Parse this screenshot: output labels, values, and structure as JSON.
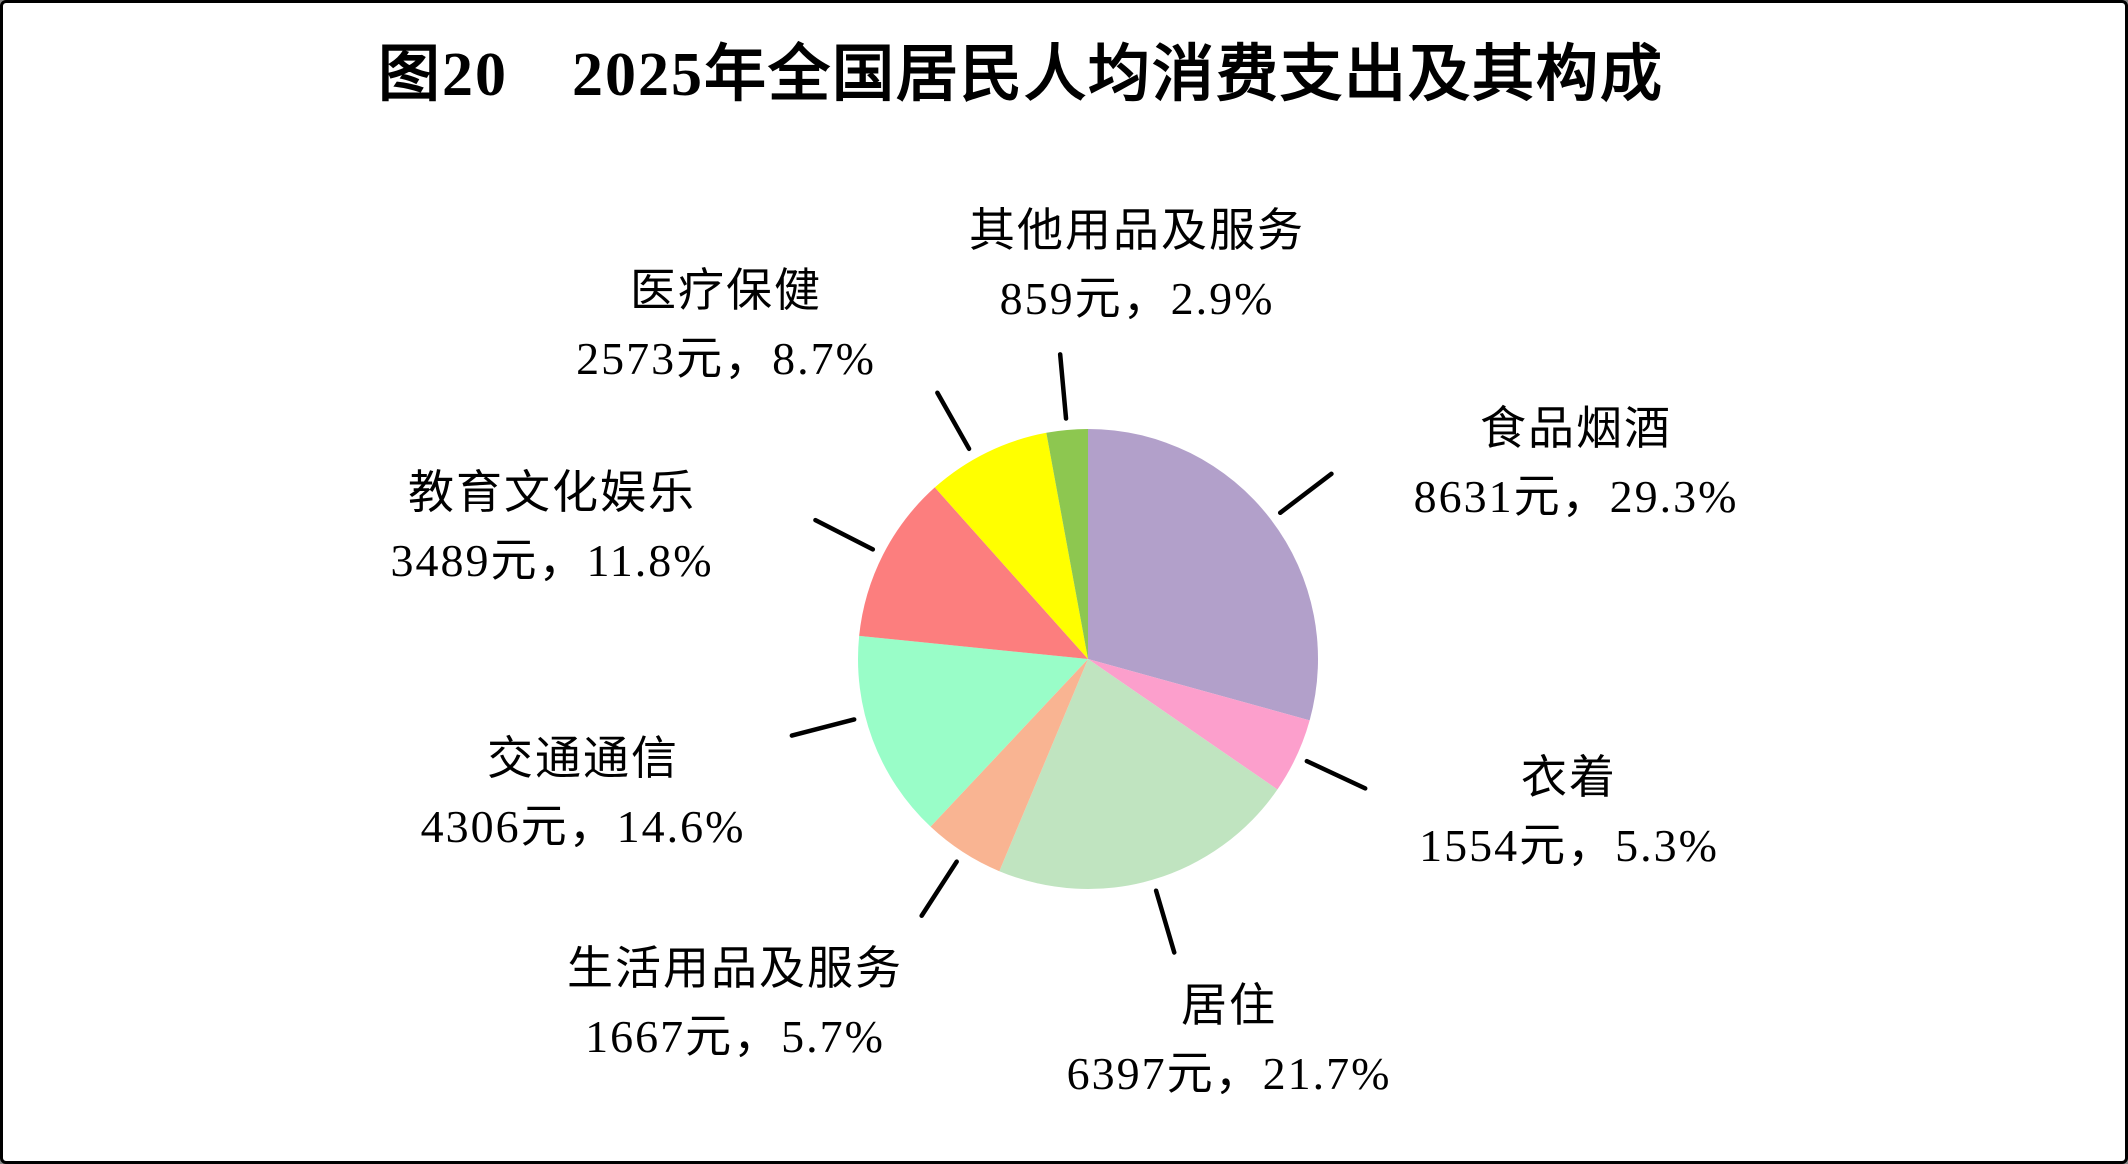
{
  "title": "图20　2025年全国居民人均消费支出及其构成",
  "chart_data": {
    "type": "pie",
    "title": "图20　2025年全国居民人均消费支出及其构成",
    "unit": "元",
    "start_angle_deg": 0,
    "direction": "clockwise",
    "legend_position": "none",
    "leader_line_color": "#000000",
    "slices": [
      {
        "name": "食品烟酒",
        "value_yuan": 8631,
        "pct": 29.3,
        "color": "#b2a0ca",
        "label": "8631元，29.3%"
      },
      {
        "name": "衣着",
        "value_yuan": 1554,
        "pct": 5.3,
        "color": "#fc9fcc",
        "label": "1554元，5.3%"
      },
      {
        "name": "居住",
        "value_yuan": 6397,
        "pct": 21.7,
        "color": "#c0e4c0",
        "label": "6397元，21.7%"
      },
      {
        "name": "生活用品及服务",
        "value_yuan": 1667,
        "pct": 5.7,
        "color": "#f9b492",
        "label": "1667元，5.7%"
      },
      {
        "name": "交通通信",
        "value_yuan": 4306,
        "pct": 14.6,
        "color": "#99fdc8",
        "label": "4306元，14.6%"
      },
      {
        "name": "教育文化娱乐",
        "value_yuan": 3489,
        "pct": 11.8,
        "color": "#fc7e7e",
        "label": "3489元，11.8%"
      },
      {
        "name": "医疗保健",
        "value_yuan": 2573,
        "pct": 8.7,
        "color": "#ffff00",
        "label": "2573元，8.7%"
      },
      {
        "name": "其他用品及服务",
        "value_yuan": 859,
        "pct": 2.9,
        "color": "#8dc750",
        "label": "859元，2.9%"
      }
    ]
  }
}
